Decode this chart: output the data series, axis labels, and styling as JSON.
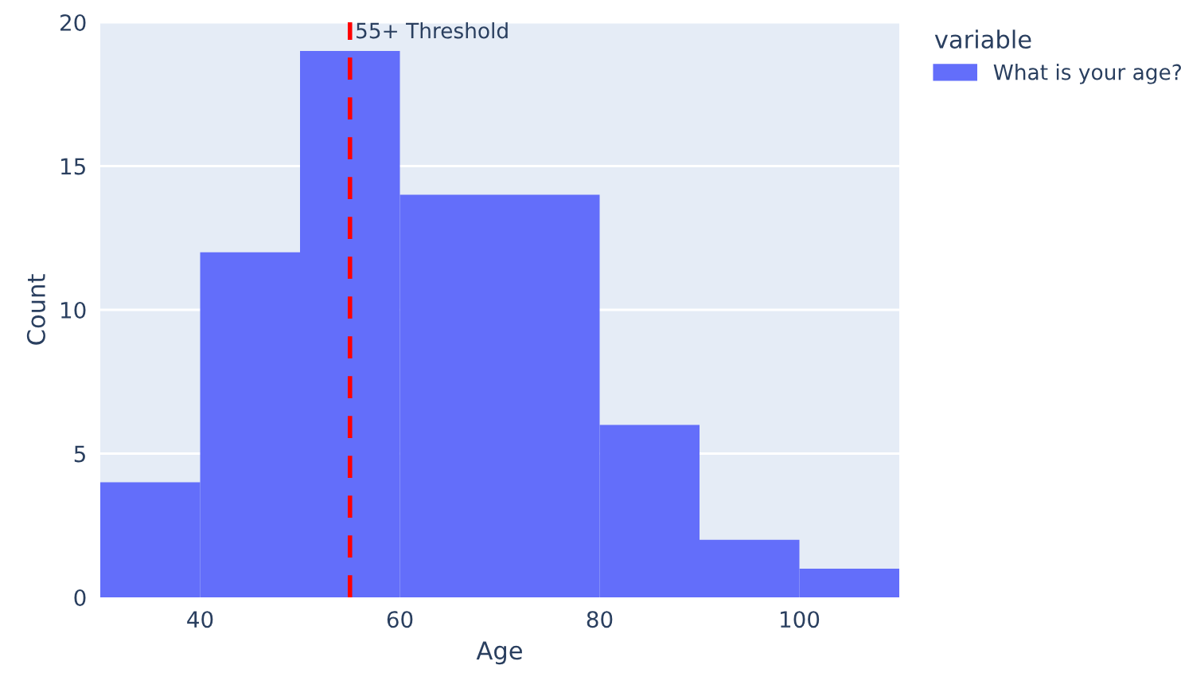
{
  "chart_data": {
    "type": "histogram",
    "xlabel": "Age",
    "ylabel": "Count",
    "legend_title": "variable",
    "bins": [
      30,
      40,
      50,
      60,
      70,
      80,
      90,
      100,
      110
    ],
    "series": [
      {
        "name": "What is your age?",
        "color": "#636efa",
        "values": [
          4,
          12,
          19,
          14,
          14,
          6,
          2,
          1
        ]
      }
    ],
    "xlim": [
      30,
      110
    ],
    "xticks": [
      40,
      60,
      80,
      100
    ],
    "ylim": [
      0,
      20
    ],
    "yticks": [
      0,
      5,
      10,
      15,
      20
    ],
    "ref_lines": [
      {
        "axis": "x",
        "value": 55,
        "label": "55+ Threshold",
        "color": "#ff0000",
        "line_style": "dashed"
      }
    ],
    "grid": "y",
    "legend": "top right"
  }
}
